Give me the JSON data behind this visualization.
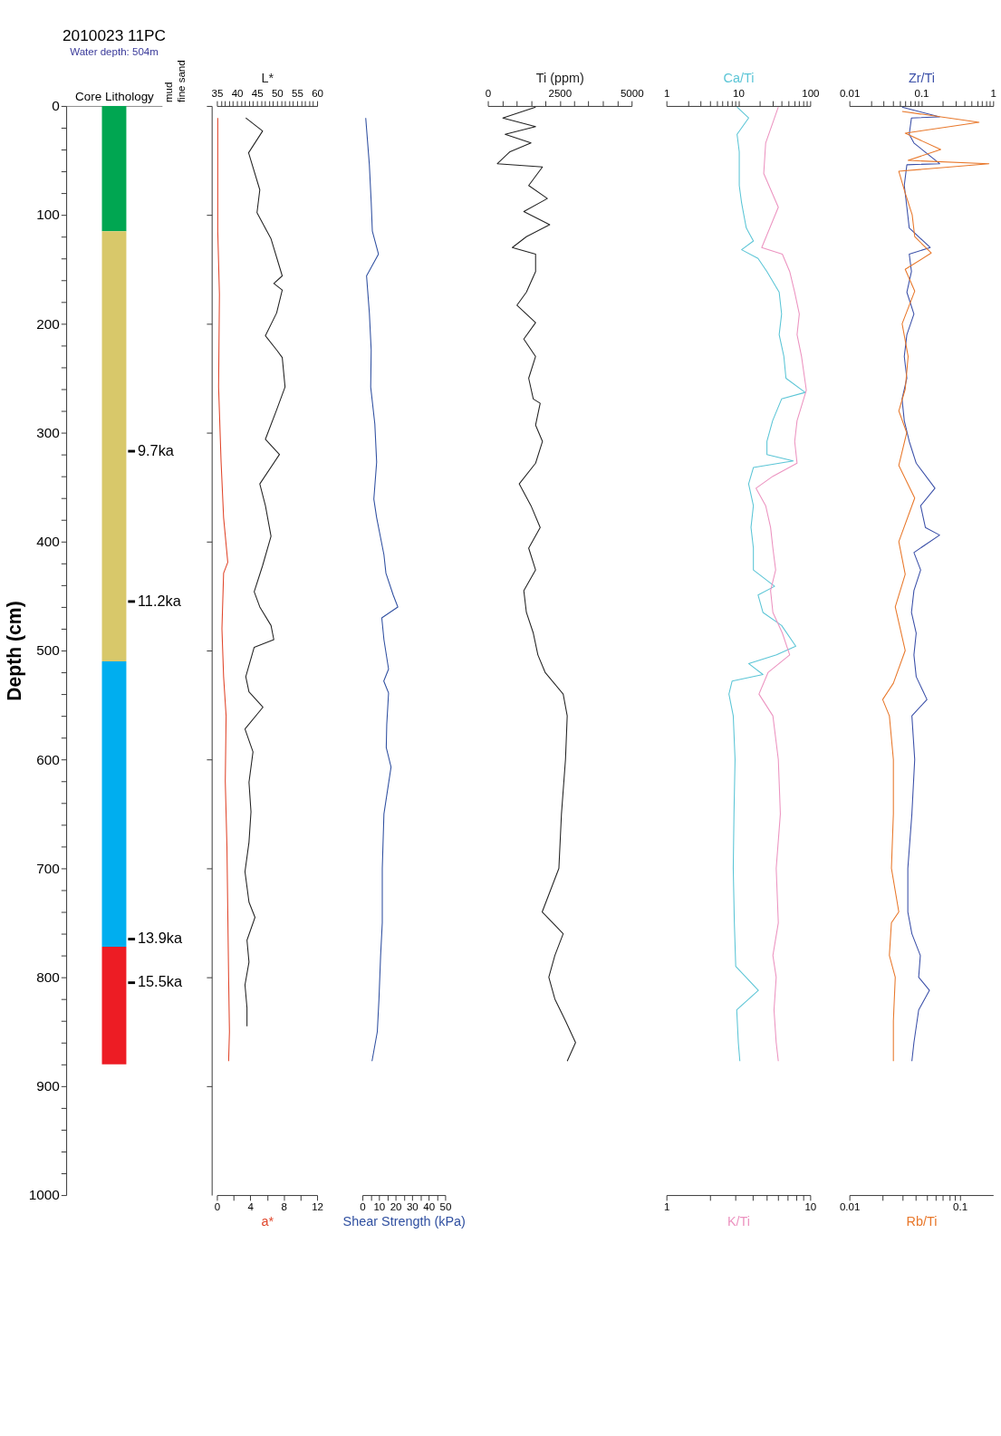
{
  "chart_data": [
    {
      "type": "bar",
      "stacked": true,
      "title": "2010023 11PC",
      "subtitle": "Water depth: 504m",
      "xlabel": "Core Lithology",
      "ylabel": "Depth (cm)",
      "categories": [
        null
      ],
      "series": [
        {
          "color": "#00a651",
          "values": [
            115
          ]
        },
        {
          "color": "#d8c86a",
          "values": [
            395
          ]
        },
        {
          "color": "#00aeef",
          "values": [
            262
          ]
        },
        {
          "color": "#ed1c24",
          "values": [
            108
          ]
        }
      ],
      "ylim": [
        1000,
        0
      ],
      "yticks": [
        0,
        {
          "value": 20,
          "label": null
        },
        {
          "value": 40,
          "label": null
        },
        {
          "value": 60,
          "label": null
        },
        {
          "value": 80,
          "label": null
        },
        100,
        {
          "value": 120,
          "label": null
        },
        {
          "value": 140,
          "label": null
        },
        {
          "value": 160,
          "label": null
        },
        {
          "value": 180,
          "label": null
        },
        200,
        {
          "value": 220,
          "label": null
        },
        {
          "value": 240,
          "label": null
        },
        {
          "value": 260,
          "label": null
        },
        {
          "value": 280,
          "label": null
        },
        300,
        {
          "value": 320,
          "label": null
        },
        {
          "value": 340,
          "label": null
        },
        {
          "value": 360,
          "label": null
        },
        {
          "value": 380,
          "label": null
        },
        400,
        {
          "value": 420,
          "label": null
        },
        {
          "value": 440,
          "label": null
        },
        {
          "value": 460,
          "label": null
        },
        {
          "value": 480,
          "label": null
        },
        500,
        {
          "value": 520,
          "label": null
        },
        {
          "value": 540,
          "label": null
        },
        {
          "value": 560,
          "label": null
        },
        {
          "value": 580,
          "label": null
        },
        600,
        {
          "value": 620,
          "label": null
        },
        {
          "value": 640,
          "label": null
        },
        {
          "value": 660,
          "label": null
        },
        {
          "value": 680,
          "label": null
        },
        700,
        {
          "value": 720,
          "label": null
        },
        {
          "value": 740,
          "label": null
        },
        {
          "value": 760,
          "label": null
        },
        {
          "value": 780,
          "label": null
        },
        800,
        {
          "value": 820,
          "label": null
        },
        {
          "value": 840,
          "label": null
        },
        {
          "value": 860,
          "label": null
        },
        {
          "value": 880,
          "label": null
        },
        900,
        {
          "value": 920,
          "label": null
        },
        {
          "value": 940,
          "label": null
        },
        {
          "value": 960,
          "label": null
        },
        {
          "value": 980,
          "label": null
        },
        1000
      ],
      "annotations": [
        "mud",
        "fine sand"
      ],
      "ref_lines": [
        {
          "axis": "y",
          "value": 317,
          "label": "9.7ka"
        },
        {
          "axis": "y",
          "value": 455,
          "label": "11.2ka"
        },
        {
          "axis": "y",
          "value": 765,
          "label": "13.9ka"
        },
        {
          "axis": "y",
          "value": 805,
          "label": "15.5ka"
        }
      ]
    },
    {
      "type": "line",
      "orientation": "horizontal",
      "tick_labels": "x",
      "x2label": "L*",
      "xlabel": "a*",
      "x2lim": [
        35,
        60
      ],
      "x2ticks": [
        35,
        {
          "value": 36,
          "label": null
        },
        {
          "value": 37,
          "label": null
        },
        {
          "value": 38,
          "label": null
        },
        {
          "value": 39,
          "label": null
        },
        40,
        {
          "value": 41,
          "label": null
        },
        {
          "value": 42,
          "label": null
        },
        {
          "value": 43,
          "label": null
        },
        {
          "value": 44,
          "label": null
        },
        45,
        {
          "value": 46,
          "label": null
        },
        {
          "value": 47,
          "label": null
        },
        {
          "value": 48,
          "label": null
        },
        {
          "value": 49,
          "label": null
        },
        50,
        {
          "value": 51,
          "label": null
        },
        {
          "value": 52,
          "label": null
        },
        {
          "value": 53,
          "label": null
        },
        {
          "value": 54,
          "label": null
        },
        55,
        {
          "value": 56,
          "label": null
        },
        {
          "value": 57,
          "label": null
        },
        {
          "value": 58,
          "label": null
        },
        {
          "value": 59,
          "label": null
        },
        60
      ],
      "xlim": [
        0,
        12
      ],
      "xticks": [
        0,
        {
          "value": 2,
          "label": null
        },
        4,
        {
          "value": 6,
          "label": null
        },
        8,
        {
          "value": 10,
          "label": null
        },
        12
      ],
      "ylim": [
        1000,
        0
      ],
      "yticks": [
        {
          "value": 0,
          "label": null
        },
        {
          "value": 100,
          "label": null
        },
        {
          "value": 200,
          "label": null
        },
        {
          "value": 300,
          "label": null
        },
        {
          "value": 400,
          "label": null
        },
        {
          "value": 500,
          "label": null
        },
        {
          "value": 600,
          "label": null
        },
        {
          "value": 700,
          "label": null
        },
        {
          "value": 800,
          "label": null
        },
        {
          "value": 900,
          "label": null
        }
      ],
      "series": [
        {
          "axis": "x2",
          "color": "#222222",
          "x": [
            11,
            23,
            43,
            77,
            98,
            122,
            156,
            163,
            169,
            190,
            211,
            224,
            231,
            258,
            279,
            306,
            320,
            347,
            367,
            395,
            422,
            446,
            460,
            477,
            490,
            497,
            524,
            538,
            552,
            572,
            593,
            621,
            648,
            676,
            703,
            731,
            745,
            766,
            786,
            807,
            828,
            845
          ],
          "values": [
            42.2,
            46.4,
            42.9,
            45.7,
            45,
            48.5,
            51.3,
            49.2,
            51.3,
            49.9,
            47.1,
            49.9,
            51.3,
            52,
            49.9,
            47.1,
            50.6,
            45.7,
            47.1,
            48.5,
            46.4,
            44.3,
            45.7,
            48.5,
            49.2,
            44.3,
            42.2,
            43,
            46.5,
            42,
            44,
            43,
            43.5,
            43,
            42,
            43,
            44.5,
            42.5,
            43,
            42,
            42.5,
            42.5
          ]
        },
        {
          "color": "#e0452a",
          "x": [
            11,
            115,
            173,
            258,
            327,
            378,
            419,
            429,
            480,
            524,
            560,
            620,
            680,
            740,
            800,
            850,
            877
          ],
          "values": [
            0.1,
            0.1,
            0.3,
            0.2,
            0.5,
            0.8,
            1.3,
            0.8,
            0.6,
            0.8,
            1.1,
            1.0,
            1.2,
            1.3,
            1.4,
            1.5,
            1.4
          ]
        }
      ]
    },
    {
      "type": "line",
      "orientation": "horizontal",
      "tick_labels": "x",
      "xlabel": "Shear Strength (kPa)",
      "xlim": [
        0,
        50
      ],
      "xticks": [
        0,
        {
          "value": 5,
          "label": null
        },
        10,
        {
          "value": 15,
          "label": null
        },
        20,
        {
          "value": 25,
          "label": null
        },
        30,
        {
          "value": 35,
          "label": null
        },
        40,
        {
          "value": 45,
          "label": null
        },
        50
      ],
      "ylim": [
        1000,
        0
      ],
      "series": [
        {
          "color": "#2f4fa0",
          "x": [
            11,
            54,
            88,
            115,
            136,
            156,
            190,
            224,
            258,
            292,
            327,
            361,
            378,
            412,
            429,
            449,
            460,
            470,
            490,
            517,
            528,
            539,
            568,
            589,
            607,
            650,
            700,
            750,
            780,
            820,
            850,
            877
          ],
          "values": [
            2,
            4.2,
            5.3,
            6,
            9.7,
            2.5,
            4.2,
            5.3,
            5,
            7.5,
            8.6,
            6.9,
            8.6,
            13,
            14.2,
            18.6,
            21.4,
            11.7,
            13,
            15.8,
            12.9,
            15.8,
            14.7,
            14.4,
            17.3,
            13,
            12,
            12,
            11,
            10,
            9,
            5.8
          ]
        }
      ]
    },
    {
      "type": "line",
      "orientation": "horizontal",
      "tick_labels": "x",
      "x2label": "Ti (ppm)",
      "x2lim": [
        0,
        5000
      ],
      "x2ticks": [
        0,
        {
          "value": 500,
          "label": null
        },
        {
          "value": 1000,
          "label": null
        },
        {
          "value": 1500,
          "label": null
        },
        {
          "value": 2000,
          "label": null
        },
        2500,
        {
          "value": 3000,
          "label": null
        },
        {
          "value": 3500,
          "label": null
        },
        {
          "value": 4000,
          "label": null
        },
        {
          "value": 4500,
          "label": null
        },
        5000
      ],
      "ylim": [
        1000,
        0
      ],
      "series": [
        {
          "axis": "x2",
          "color": "#222222",
          "x": [
            1,
            11,
            19,
            26,
            34,
            42,
            53,
            56,
            73,
            85,
            97,
            109,
            120,
            130,
            136,
            152,
            171,
            183,
            199,
            214,
            230,
            250,
            269,
            273,
            293,
            308,
            328,
            347,
            367,
            387,
            406,
            426,
            445,
            465,
            484,
            504,
            520,
            540,
            560,
            600,
            650,
            700,
            720,
            740,
            760,
            780,
            800,
            820,
            840,
            860,
            877
          ],
          "values": [
            1660,
            520,
            1660,
            600,
            1500,
            770,
            330,
            1900,
            1420,
            2070,
            1250,
            2150,
            1340,
            850,
            1660,
            1660,
            1340,
            1010,
            1660,
            1250,
            1660,
            1420,
            1580,
            1820,
            1660,
            1900,
            1660,
            1090,
            1500,
            1820,
            1420,
            1660,
            1250,
            1340,
            1580,
            1740,
            1990,
            2620,
            2760,
            2700,
            2560,
            2470,
            2180,
            1890,
            2620,
            2330,
            2120,
            2330,
            2700,
            3050,
            2760
          ]
        }
      ]
    },
    {
      "type": "line",
      "orientation": "horizontal",
      "tick_labels": "x",
      "log": "x",
      "xlabel": "Ca/Ti",
      "xlim": [
        1,
        100
      ],
      "xticks": [
        1,
        {
          "value": 2,
          "label": null
        },
        {
          "value": 3,
          "label": null
        },
        {
          "value": 4,
          "label": null
        },
        {
          "value": 5,
          "label": null
        },
        {
          "value": 6,
          "label": null
        },
        {
          "value": 7,
          "label": null
        },
        {
          "value": 8,
          "label": null
        },
        {
          "value": 9,
          "label": null
        },
        10,
        {
          "value": 20,
          "label": null
        },
        {
          "value": 30,
          "label": null
        },
        {
          "value": 40,
          "label": null
        },
        {
          "value": 50,
          "label": null
        },
        {
          "value": 60,
          "label": null
        },
        {
          "value": 70,
          "label": null
        },
        {
          "value": 80,
          "label": null
        },
        {
          "value": 90,
          "label": null
        },
        100
      ],
      "ylim": [
        1000,
        0
      ],
      "series": [
        {
          "color": "#5bc5d6",
          "x": [
            1,
            11,
            26,
            42,
            58,
            73,
            89,
            101,
            112,
            124,
            132,
            140,
            152,
            171,
            191,
            210,
            230,
            250,
            263,
            269,
            289,
            308,
            320,
            326,
            332,
            347,
            367,
            387,
            406,
            426,
            441,
            449,
            465,
            477,
            496,
            504,
            512,
            522,
            528,
            540,
            560,
            600,
            650,
            700,
            750,
            790,
            812,
            830,
            860,
            877
          ],
          "values": [
            9.6,
            13.9,
            9.6,
            10.3,
            10.3,
            10.3,
            11.1,
            12,
            12.9,
            16.2,
            11.1,
            18.8,
            25,
            37,
            40,
            37,
            43,
            46,
            85,
            40,
            30,
            25,
            25,
            58,
            16.2,
            13.9,
            16.2,
            15,
            16.2,
            16.2,
            32,
            18.8,
            22,
            40,
            63,
            34,
            13.9,
            22,
            8.2,
            7.4,
            8.5,
            9,
            8.7,
            8.5,
            8.8,
            9.2,
            19,
            9.5,
            10,
            10.5
          ]
        }
      ]
    },
    {
      "type": "line",
      "orientation": "horizontal",
      "tick_labels": "x",
      "log": "x",
      "xlabel": "K/Ti",
      "xlim": [
        1,
        10
      ],
      "xticks": [
        1,
        {
          "value": 2,
          "label": null
        },
        {
          "value": 3,
          "label": null
        },
        {
          "value": 4,
          "label": null
        },
        {
          "value": 5,
          "label": null
        },
        {
          "value": 6,
          "label": null
        },
        {
          "value": 7,
          "label": null
        },
        {
          "value": 8,
          "label": null
        },
        {
          "value": 9,
          "label": null
        },
        10
      ],
      "ylim": [
        1000,
        0
      ],
      "series": [
        {
          "color": "#ec93c0",
          "x": [
            1,
            34,
            62,
            93,
            130,
            136,
            152,
            171,
            191,
            210,
            230,
            261,
            289,
            308,
            328,
            340,
            351,
            367,
            387,
            406,
            426,
            445,
            465,
            484,
            504,
            520,
            540,
            560,
            600,
            650,
            700,
            750,
            780,
            800,
            830,
            860,
            877
          ],
          "values": [
            6,
            4.9,
            4.75,
            6,
            4.6,
            6.4,
            7.2,
            7.8,
            8.4,
            8.1,
            8.7,
            9.4,
            8.1,
            7.8,
            8.1,
            5.5,
            4.2,
            4.9,
            5.3,
            5.5,
            5.75,
            5.3,
            5.5,
            6.4,
            7.2,
            5.1,
            4.4,
            5.5,
            6,
            6.2,
            5.8,
            6,
            5.5,
            5.8,
            5.6,
            5.8,
            6
          ]
        }
      ]
    },
    {
      "type": "line",
      "orientation": "horizontal",
      "tick_labels": "x",
      "log": "x",
      "xlabel": "Zr/Ti",
      "xlim": [
        0.01,
        1
      ],
      "xticks": [
        0.01,
        {
          "value": 0.02,
          "label": null
        },
        {
          "value": 0.03,
          "label": null
        },
        {
          "value": 0.04,
          "label": null
        },
        {
          "value": 0.05,
          "label": null
        },
        {
          "value": 0.06,
          "label": null
        },
        {
          "value": 0.07,
          "label": null
        },
        {
          "value": 0.08,
          "label": null
        },
        {
          "value": 0.09,
          "label": null
        },
        0.1,
        {
          "value": 0.2,
          "label": null
        },
        {
          "value": 0.3,
          "label": null
        },
        {
          "value": 0.4,
          "label": null
        },
        {
          "value": 0.5,
          "label": null
        },
        {
          "value": 0.6,
          "label": null
        },
        {
          "value": 0.7,
          "label": null
        },
        {
          "value": 0.8,
          "label": null
        },
        {
          "value": 0.9,
          "label": null
        },
        1
      ],
      "ylim": [
        1000,
        0
      ],
      "series": [
        {
          "color": "#3a4fa8",
          "x": [
            1,
            10,
            11,
            26,
            34,
            53,
            54,
            73,
            93,
            112,
            130,
            136,
            152,
            171,
            191,
            210,
            230,
            250,
            269,
            289,
            308,
            328,
            351,
            367,
            387,
            394,
            410,
            426,
            445,
            465,
            484,
            504,
            524,
            545,
            560,
            600,
            650,
            700,
            740,
            760,
            780,
            800,
            812,
            830,
            860,
            877
          ],
          "values": [
            0.054,
            0.18,
            0.073,
            0.068,
            0.079,
            0.18,
            0.063,
            0.058,
            0.063,
            0.068,
            0.133,
            0.068,
            0.073,
            0.063,
            0.079,
            0.063,
            0.058,
            0.063,
            0.054,
            0.058,
            0.068,
            0.085,
            0.155,
            0.098,
            0.114,
            0.18,
            0.079,
            0.098,
            0.079,
            0.073,
            0.085,
            0.079,
            0.085,
            0.12,
            0.074,
            0.081,
            0.074,
            0.065,
            0.065,
            0.074,
            0.097,
            0.092,
            0.13,
            0.092,
            0.079,
            0.074
          ]
        }
      ]
    },
    {
      "type": "line",
      "orientation": "horizontal",
      "tick_labels": "x",
      "log": "x",
      "xlabel": "Rb/Ti",
      "xlim": [
        0.01,
        0.2
      ],
      "xticks": [
        0.01,
        {
          "value": 0.02,
          "label": null
        },
        {
          "value": 0.03,
          "label": null
        },
        {
          "value": 0.04,
          "label": null
        },
        {
          "value": 0.05,
          "label": null
        },
        {
          "value": 0.06,
          "label": null
        },
        {
          "value": 0.07,
          "label": null
        },
        {
          "value": 0.08,
          "label": null
        },
        {
          "value": 0.09,
          "label": null
        },
        0.1
      ],
      "ylim": [
        1000,
        0
      ],
      "series": [
        {
          "color": "#e8772a",
          "x": [
            5,
            15,
            25,
            40,
            50,
            53,
            60,
            80,
            100,
            120,
            135,
            150,
            170,
            200,
            230,
            260,
            280,
            300,
            330,
            360,
            400,
            430,
            460,
            500,
            530,
            545,
            560,
            600,
            650,
            700,
            740,
            750,
            780,
            800,
            840,
            877
          ],
          "values": [
            0.03,
            0.149,
            0.032,
            0.067,
            0.034,
            0.183,
            0.028,
            0.032,
            0.037,
            0.039,
            0.055,
            0.032,
            0.039,
            0.03,
            0.034,
            0.032,
            0.028,
            0.033,
            0.028,
            0.039,
            0.028,
            0.032,
            0.026,
            0.032,
            0.025,
            0.02,
            0.023,
            0.025,
            0.025,
            0.024,
            0.028,
            0.024,
            0.023,
            0.026,
            0.025,
            0.025
          ]
        }
      ]
    }
  ]
}
